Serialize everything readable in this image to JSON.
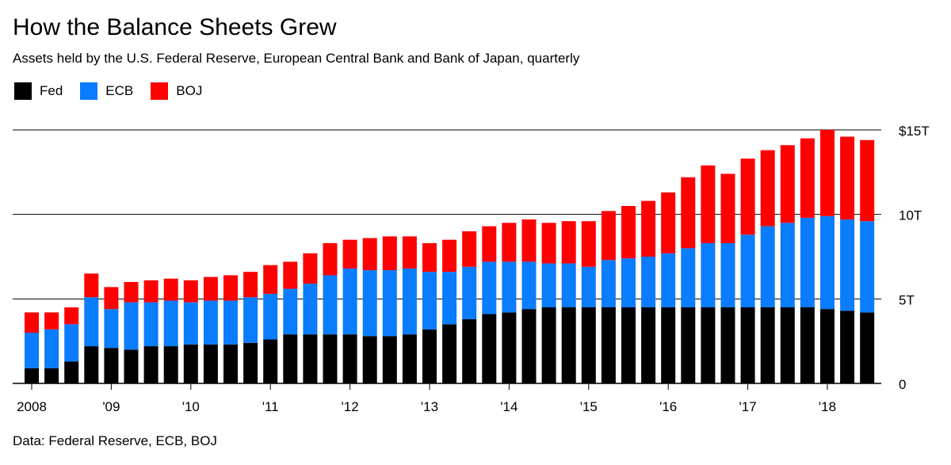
{
  "title": "How the Balance Sheets Grew",
  "subtitle": "Assets held by the U.S. Federal Reserve, European Central Bank and Bank of Japan, quarterly",
  "source": "Data: Federal Reserve, ECB, BOJ",
  "legend": [
    {
      "label": "Fed",
      "color": "#000000"
    },
    {
      "label": "ECB",
      "color": "#0a7cfe"
    },
    {
      "label": "BOJ",
      "color": "#ff0000"
    }
  ],
  "chart_data": {
    "type": "bar",
    "stacked": true,
    "ylim": [
      0,
      15
    ],
    "yticks": [
      {
        "value": 0,
        "label": "0"
      },
      {
        "value": 5,
        "label": "5T"
      },
      {
        "value": 10,
        "label": "10T"
      },
      {
        "value": 15,
        "label": "$15T"
      }
    ],
    "xticks": [
      {
        "index": 0,
        "label": "2008"
      },
      {
        "index": 4,
        "label": "'09"
      },
      {
        "index": 8,
        "label": "'10"
      },
      {
        "index": 12,
        "label": "'11"
      },
      {
        "index": 16,
        "label": "'12"
      },
      {
        "index": 20,
        "label": "'13"
      },
      {
        "index": 24,
        "label": "'14"
      },
      {
        "index": 28,
        "label": "'15"
      },
      {
        "index": 32,
        "label": "'16"
      },
      {
        "index": 36,
        "label": "'17"
      },
      {
        "index": 40,
        "label": "'18"
      }
    ],
    "grid": true,
    "legend_position": "top-left",
    "series": [
      {
        "name": "Fed",
        "color": "#000000",
        "values": [
          0.9,
          0.9,
          1.3,
          2.2,
          2.1,
          2.0,
          2.2,
          2.2,
          2.3,
          2.3,
          2.3,
          2.4,
          2.6,
          2.9,
          2.9,
          2.9,
          2.9,
          2.8,
          2.8,
          2.9,
          3.2,
          3.5,
          3.8,
          4.1,
          4.2,
          4.4,
          4.5,
          4.5,
          4.5,
          4.5,
          4.5,
          4.5,
          4.5,
          4.5,
          4.5,
          4.5,
          4.5,
          4.5,
          4.5,
          4.5,
          4.4,
          4.3,
          4.2
        ]
      },
      {
        "name": "ECB",
        "color": "#0a7cfe",
        "values": [
          2.1,
          2.3,
          2.2,
          2.9,
          2.3,
          2.8,
          2.6,
          2.7,
          2.5,
          2.6,
          2.6,
          2.7,
          2.7,
          2.7,
          3.0,
          3.5,
          3.9,
          3.9,
          3.9,
          3.9,
          3.4,
          3.1,
          3.1,
          3.1,
          3.0,
          2.8,
          2.6,
          2.6,
          2.4,
          2.8,
          2.9,
          3.0,
          3.2,
          3.5,
          3.8,
          3.8,
          4.3,
          4.8,
          5.0,
          5.3,
          5.5,
          5.4,
          5.4
        ]
      },
      {
        "name": "BOJ",
        "color": "#ff0000",
        "values": [
          1.2,
          1.0,
          1.0,
          1.4,
          1.3,
          1.2,
          1.3,
          1.3,
          1.3,
          1.4,
          1.5,
          1.5,
          1.7,
          1.6,
          1.8,
          1.9,
          1.7,
          1.9,
          2.0,
          1.9,
          1.7,
          1.9,
          2.1,
          2.1,
          2.3,
          2.5,
          2.4,
          2.5,
          2.7,
          2.9,
          3.1,
          3.3,
          3.6,
          4.2,
          4.6,
          4.1,
          4.5,
          4.5,
          4.6,
          4.7,
          5.1,
          4.9,
          4.8
        ]
      }
    ]
  }
}
